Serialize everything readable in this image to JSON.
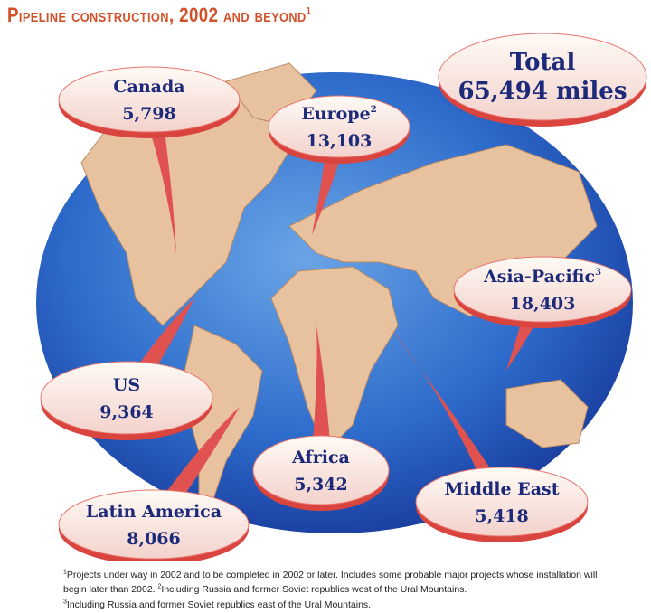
{
  "header": {
    "title": "Pipeline construction, 2002 and beyond",
    "title_note": "1"
  },
  "total": {
    "label": "Total",
    "value": "65,494 miles"
  },
  "regions": [
    {
      "name": "Canada",
      "value": "5,798"
    },
    {
      "name": "Europe",
      "note": "2",
      "value": "13,103"
    },
    {
      "name": "Asia-Pacific",
      "note": "3",
      "value": "18,403"
    },
    {
      "name": "US",
      "value": "9,364"
    },
    {
      "name": "Africa",
      "value": "5,342"
    },
    {
      "name": "Middle East",
      "value": "5,418"
    },
    {
      "name": "Latin America",
      "value": "8,066"
    }
  ],
  "footnotes": [
    {
      "mark": "1",
      "text": "Projects under way in 2002 and to be completed in 2002 or later. Includes some probable major projects whose installation will begin later than 2002."
    },
    {
      "mark": "2",
      "text": "Including Russia and former Soviet republics west of the Ural Mountains."
    },
    {
      "mark": "3",
      "text": "Including Russia and former Soviet republics east of the Ural Mountains."
    }
  ]
}
